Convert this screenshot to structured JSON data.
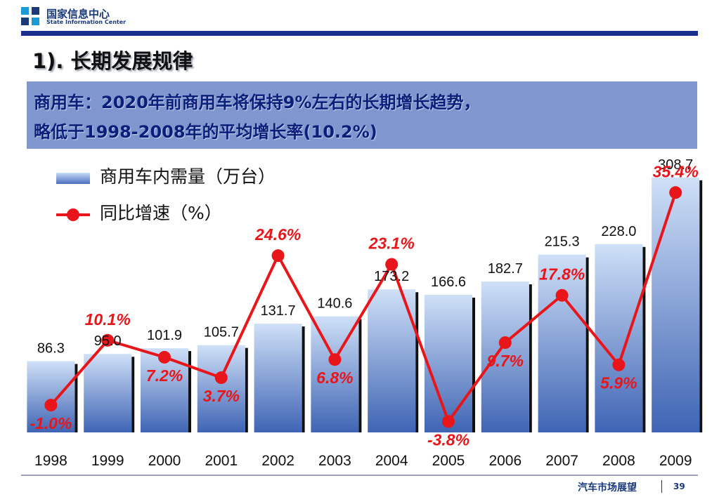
{
  "header": {
    "org_cn": "国家信息中心",
    "org_en": "State Information Center"
  },
  "slide_title": "1). 长期发展规律",
  "banner": {
    "line1": "商用车：2020年前商用车将保持9%左右的长期增长趋势，",
    "line2": "略低于1998-2008年的平均增长率(10.2%)"
  },
  "legend": {
    "bars": "商用车内需量（万台）",
    "line": "同比增速（%）"
  },
  "colors": {
    "bar_light": "#cfe0f7",
    "bar_dark": "#3f64b4",
    "line": "#e8161b",
    "banner_bg": "#7f96cf",
    "banner_text": "#0a1f7a",
    "rule": "#1a2e8c"
  },
  "chart_data": {
    "type": "bar",
    "categories": [
      "1998",
      "1999",
      "2000",
      "2001",
      "2002",
      "2003",
      "2004",
      "2005",
      "2006",
      "2007",
      "2008",
      "2009"
    ],
    "series": [
      {
        "name": "商用车内需量（万台）",
        "type": "bar",
        "axis": "left",
        "values": [
          86.3,
          95.0,
          101.9,
          105.7,
          131.7,
          140.6,
          173.2,
          166.6,
          182.7,
          215.3,
          228.0,
          308.7
        ],
        "labels": [
          "86.3",
          "95.0",
          "101.9",
          "105.7",
          "131.7",
          "140.6",
          "173.2",
          "166.6",
          "182.7",
          "215.3",
          "228.0",
          "308.7"
        ]
      },
      {
        "name": "同比增速（%）",
        "type": "line",
        "axis": "right",
        "values": [
          -1.0,
          10.1,
          7.2,
          3.7,
          24.6,
          6.8,
          23.1,
          -3.8,
          9.7,
          17.8,
          5.9,
          35.4
        ],
        "labels": [
          "-1.0%",
          "10.1%",
          "7.2%",
          "3.7%",
          "24.6%",
          "6.8%",
          "23.1%",
          "-3.8%",
          "9.7%",
          "17.8%",
          "5.9%",
          "35.4%"
        ]
      }
    ],
    "ylim_left": [
      0,
      340
    ],
    "ylim_right": [
      -10,
      40
    ],
    "grid": false,
    "legend_position": "top-left"
  },
  "footer": {
    "section": "汽车市场展望",
    "page": "39"
  }
}
